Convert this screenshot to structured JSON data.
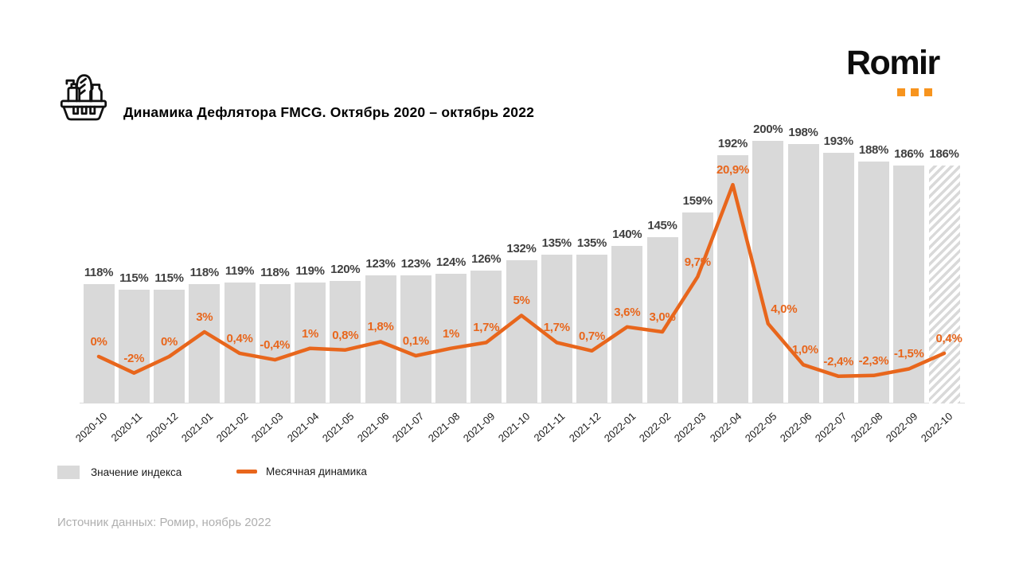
{
  "header": {
    "title": "Динамика Дефлятора FMCG. Октябрь 2020 – октябрь 2022"
  },
  "logo": {
    "text": "Romir"
  },
  "legend": {
    "bars_label": "Значение индекса",
    "line_label": "Месячная динамика"
  },
  "source": "Источник данных: Ромир, ноябрь 2022",
  "colors": {
    "bar": "#D9D9D9",
    "line": "#E8661C",
    "bar_label": "#3F3F3F",
    "axis_label": "#1A1A1A",
    "logo_dot": "#F7941E",
    "source_text": "#AFAFAF",
    "baseline": "#DBDBDB"
  },
  "chart_data": {
    "type": "combo-bar-line",
    "title": "Динамика Дефлятора FMCG. Октябрь 2020 – октябрь 2022",
    "xlabel": "",
    "ylabel": "",
    "grid": false,
    "legend_position": "bottom-left",
    "bar_axis_range": [
      50,
      205
    ],
    "line_axis_range": [
      -5,
      25
    ],
    "categories": [
      "2020-10",
      "2020-11",
      "2020-12",
      "2021-01",
      "2021-02",
      "2021-03",
      "2021-04",
      "2021-05",
      "2021-06",
      "2021-07",
      "2021-08",
      "2021-09",
      "2021-10",
      "2021-11",
      "2021-12",
      "2022-01",
      "2022-02",
      "2022-03",
      "2022-04",
      "2022-05",
      "2022-06",
      "2022-07",
      "2022-08",
      "2022-09",
      "2022-10"
    ],
    "series": [
      {
        "name": "Значение индекса",
        "type": "bar",
        "unit": "%",
        "values": [
          118,
          115,
          115,
          118,
          119,
          118,
          119,
          120,
          123,
          123,
          124,
          126,
          132,
          135,
          135,
          140,
          145,
          159,
          192,
          200,
          198,
          193,
          188,
          186,
          186
        ],
        "labels": [
          "118%",
          "115%",
          "115%",
          "118%",
          "119%",
          "118%",
          "119%",
          "120%",
          "123%",
          "123%",
          "124%",
          "126%",
          "132%",
          "135%",
          "135%",
          "140%",
          "145%",
          "159%",
          "192%",
          "200%",
          "198%",
          "193%",
          "188%",
          "186%",
          "186%"
        ],
        "hatched_last": true
      },
      {
        "name": "Месячная динамика",
        "type": "line",
        "unit": "%",
        "values": [
          0,
          -2,
          0,
          3,
          0.4,
          -0.4,
          1,
          0.8,
          1.8,
          0.1,
          1,
          1.7,
          5,
          1.7,
          0.7,
          3.6,
          3.0,
          9.7,
          20.9,
          4.0,
          -1.0,
          -2.4,
          -2.3,
          -1.5,
          0.4
        ],
        "labels": [
          "0%",
          "-2%",
          "0%",
          "3%",
          "0,4%",
          "-0,4%",
          "1%",
          "0,8%",
          "1,8%",
          "0,1%",
          "1%",
          "1,7%",
          "5%",
          "1,7%",
          "0,7%",
          "3,6%",
          "3,0%",
          "9,7%",
          "20,9%",
          "4,0%",
          "-1,0%",
          "-2,4%",
          "-2,3%",
          "-1,5%",
          "0,4%"
        ],
        "label_dx": [
          0,
          0,
          0,
          0,
          0,
          0,
          0,
          0,
          0,
          0,
          0,
          0,
          0,
          0,
          0,
          0,
          0,
          0,
          0,
          20,
          0,
          0,
          0,
          0,
          6
        ]
      }
    ]
  }
}
